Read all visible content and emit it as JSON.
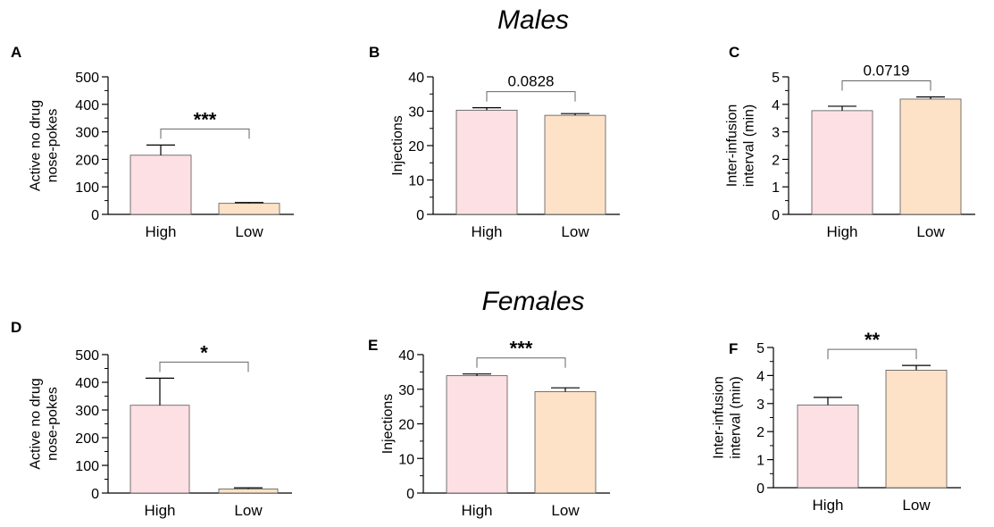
{
  "sections": [
    {
      "title": "Males"
    },
    {
      "title": "Females"
    }
  ],
  "chart_data": [
    {
      "panel": "A",
      "type": "bar",
      "categories": [
        "High",
        "Low"
      ],
      "values": [
        215,
        40
      ],
      "errors": [
        37,
        3
      ],
      "ylabel_lines": [
        "Active no drug",
        "nose-pokes"
      ],
      "ylim": [
        0,
        500
      ],
      "yticks": [
        0,
        100,
        200,
        300,
        400,
        500
      ],
      "significance": "***",
      "colors": [
        "#fde0e3",
        "#fde2c7"
      ]
    },
    {
      "panel": "B",
      "type": "bar",
      "categories": [
        "High",
        "Low"
      ],
      "values": [
        30.3,
        28.8
      ],
      "errors": [
        0.7,
        0.5
      ],
      "ylabel_lines": [
        "Injections"
      ],
      "ylim": [
        0,
        40
      ],
      "yticks": [
        0,
        10,
        20,
        30,
        40
      ],
      "significance": "0.0828",
      "colors": [
        "#fde0e3",
        "#fde2c7"
      ]
    },
    {
      "panel": "C",
      "type": "bar",
      "categories": [
        "High",
        "Low"
      ],
      "values": [
        3.77,
        4.19
      ],
      "errors": [
        0.16,
        0.08
      ],
      "ylabel_lines": [
        "Inter-infusion",
        "interval (min)"
      ],
      "ylim": [
        0,
        5
      ],
      "yticks": [
        0,
        1,
        2,
        3,
        4,
        5
      ],
      "significance": "0.0719",
      "colors": [
        "#fde0e3",
        "#fde2c7"
      ]
    },
    {
      "panel": "D",
      "type": "bar",
      "categories": [
        "High",
        "Low"
      ],
      "values": [
        317,
        15
      ],
      "errors": [
        98,
        4
      ],
      "ylabel_lines": [
        "Active no drug",
        "nose-pokes"
      ],
      "ylim": [
        0,
        500
      ],
      "yticks": [
        0,
        100,
        200,
        300,
        400,
        500
      ],
      "significance": "*",
      "colors": [
        "#fde0e3",
        "#fde2c7"
      ]
    },
    {
      "panel": "E",
      "type": "bar",
      "categories": [
        "High",
        "Low"
      ],
      "values": [
        33.9,
        29.3
      ],
      "errors": [
        0.5,
        1.1
      ],
      "ylabel_lines": [
        "Injections"
      ],
      "ylim": [
        0,
        40
      ],
      "yticks": [
        0,
        10,
        20,
        30,
        40
      ],
      "significance": "***",
      "colors": [
        "#fde0e3",
        "#fde2c7"
      ]
    },
    {
      "panel": "F",
      "type": "bar",
      "categories": [
        "High",
        "Low"
      ],
      "values": [
        2.95,
        4.19
      ],
      "errors": [
        0.27,
        0.17
      ],
      "ylabel_lines": [
        "Inter-infusion",
        "interval (min)"
      ],
      "ylim": [
        0,
        5
      ],
      "yticks": [
        0,
        1,
        2,
        3,
        4,
        5
      ],
      "significance": "**",
      "colors": [
        "#fde0e3",
        "#fde2c7"
      ]
    }
  ]
}
